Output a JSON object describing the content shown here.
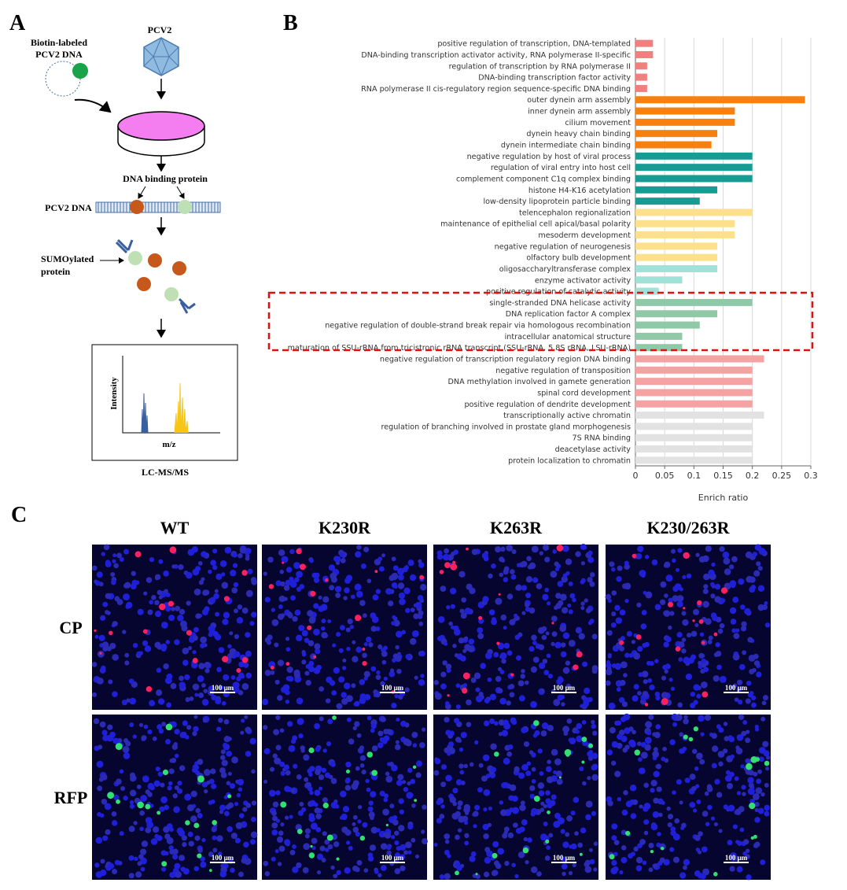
{
  "panel_a": {
    "letter": "A",
    "biotin_label": "Biotin-labeled",
    "biotin_label_2": "PCV2 DNA",
    "virus": "PCV2",
    "binding_label": "DNA binding protein",
    "dna_label": "PCV2 DNA",
    "sumo_label": "SUMOylated",
    "sumo_label_2": "protein",
    "y_axis": "Intensity",
    "x_axis": "m/z",
    "method": "LC-MS/MS"
  },
  "panel_b_letter": "B",
  "chart_data": {
    "type": "bar",
    "orientation": "horizontal",
    "xlabel": "Enrich ratio",
    "categories": [
      "positive regulation of transcription, DNA-templated",
      "DNA-binding transcription activator activity, RNA polymerase II-specific",
      "regulation of transcription by RNA polymerase II",
      "DNA-binding transcription factor activity",
      "RNA polymerase II cis-regulatory region sequence-specific DNA binding",
      "outer dynein arm assembly",
      "inner dynein arm assembly",
      "cilium movement",
      "dynein heavy chain binding",
      "dynein intermediate chain binding",
      "negative regulation by host of viral process",
      "regulation of viral entry into host cell",
      "complement component C1q complex binding",
      "histone H4-K16 acetylation",
      "low-density lipoprotein particle binding",
      "telencephalon regionalization",
      "maintenance of epithelial cell apical/basal polarity",
      "mesoderm development",
      "negative regulation of neurogenesis",
      "olfactory bulb development",
      "oligosaccharyltransferase complex",
      "enzyme activator activity",
      "positive regulation of catalytic activity",
      "single-stranded DNA helicase activity",
      "DNA replication factor A complex",
      "negative regulation of double-strand break repair via homologous recombination",
      "intracellular anatomical structure",
      "maturation of SSU-rRNA from tricistronic rRNA transcript (SSU-rRNA, 5.8S rRNA, LSU-rRNA)",
      "negative regulation of transcription regulatory region DNA binding",
      "negative regulation of transposition",
      "DNA methylation involved in gamete generation",
      "spinal cord development",
      "positive regulation of dendrite development",
      "transcriptionally active chromatin",
      "regulation of branching involved in prostate gland morphogenesis",
      "7S RNA binding",
      "deacetylase activity",
      "protein localization to chromatin"
    ],
    "values": [
      0.03,
      0.03,
      0.02,
      0.02,
      0.02,
      0.29,
      0.17,
      0.17,
      0.14,
      0.13,
      0.2,
      0.2,
      0.2,
      0.14,
      0.11,
      0.2,
      0.17,
      0.17,
      0.14,
      0.14,
      0.14,
      0.08,
      0.04,
      0.2,
      0.14,
      0.11,
      0.08,
      0.08,
      0.22,
      0.2,
      0.2,
      0.2,
      0.2,
      0.22,
      0.2,
      0.2,
      0.2,
      0.2
    ],
    "colors": [
      "#f08080",
      "#f08080",
      "#f08080",
      "#f08080",
      "#f08080",
      "#f7800f",
      "#f7800f",
      "#f7800f",
      "#f7800f",
      "#f7800f",
      "#179c94",
      "#179c94",
      "#179c94",
      "#179c94",
      "#179c94",
      "#fde08c",
      "#fde08c",
      "#fde08c",
      "#fde08c",
      "#fde08c",
      "#a0e2d8",
      "#a0e2d8",
      "#a0e2d8",
      "#8fc9a8",
      "#8fc9a8",
      "#8fc9a8",
      "#8fc9a8",
      "#8fc9a8",
      "#f4a2a2",
      "#f4a2a2",
      "#f4a2a2",
      "#f4a2a2",
      "#f4a2a2",
      "#e2e2e2",
      "#e2e2e2",
      "#e2e2e2",
      "#e2e2e2",
      "#e2e2e2"
    ],
    "xlim": [
      0,
      0.3
    ],
    "xticks": [
      0,
      0.05,
      0.1,
      0.15,
      0.2,
      0.25,
      0.3
    ],
    "grid": true
  },
  "panel_c": {
    "letter": "C",
    "columns": [
      "WT",
      "K230R",
      "K263R",
      "K230/263R"
    ],
    "rows": [
      "CP",
      "RFP"
    ],
    "scale_bar": "100 μm"
  }
}
